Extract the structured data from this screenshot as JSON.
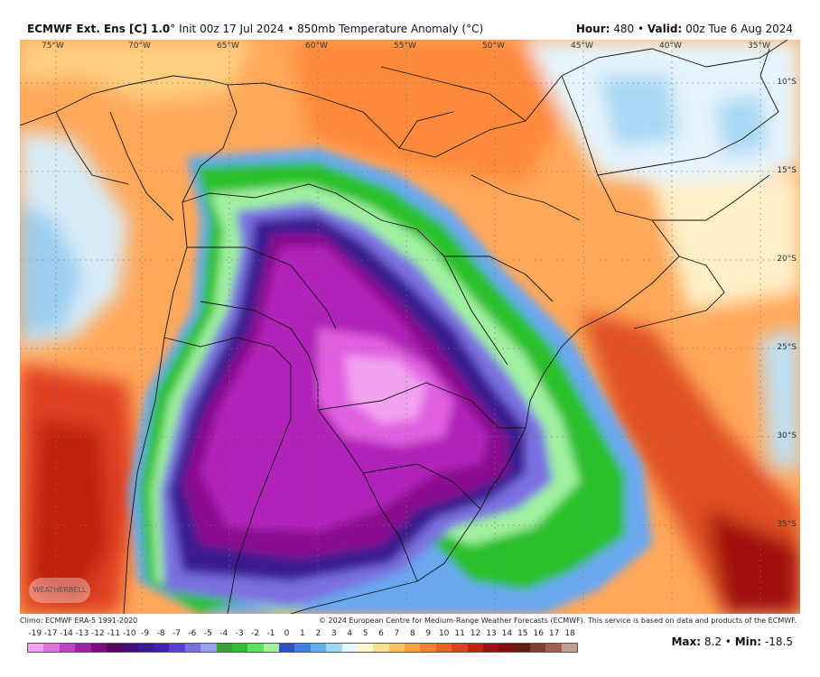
{
  "header": {
    "model": "ECMWF Ext. Ens [C] 1.0",
    "degree": "°",
    "init": "Init 00z 17 Jul 2024",
    "bullet": "•",
    "field": "850mb Temperature Anomaly (°C)",
    "hour_label": "Hour:",
    "hour_value": "480",
    "valid_label": "Valid:",
    "valid_value": "00z Tue 6 Aug 2024"
  },
  "map": {
    "longitudes": [
      "75°W",
      "70°W",
      "65°W",
      "60°W",
      "55°W",
      "50°W",
      "45°W",
      "40°W",
      "35°W"
    ],
    "latitudes": [
      "10°S",
      "15°S",
      "20°S",
      "25°S",
      "30°S",
      "35°S"
    ],
    "watermark_logo_text": "WEATHERBELL"
  },
  "footer": {
    "climo": "Climo: ECMWF ERA-5 1991-2020",
    "copyright": "© 2024 European Centre for Medium-Range Weather Forecasts (ECMWF). This service is based on data and products of the ECMWF."
  },
  "colorbar": {
    "labels": [
      "-19",
      "-17",
      "-14",
      "-13",
      "-12",
      "-11",
      "-10",
      "-9",
      "-8",
      "-7",
      "-6",
      "-5",
      "-4",
      "-3",
      "-2",
      "-1",
      "0",
      "1",
      "2",
      "3",
      "4",
      "5",
      "6",
      "7",
      "8",
      "9",
      "10",
      "11",
      "12",
      "13",
      "14",
      "15",
      "16",
      "17",
      "18"
    ],
    "colors": [
      "#f2a0f0",
      "#e070e0",
      "#c040c8",
      "#a020a8",
      "#800880",
      "#5a0060",
      "#40107a",
      "#3a1a90",
      "#4020b0",
      "#5a40d0",
      "#7a70e0",
      "#9aa0f0",
      "#3aa03a",
      "#30c030",
      "#60e060",
      "#a0f0a0",
      "#3050c0",
      "#4080e0",
      "#60b0f0",
      "#a0d8f8",
      "#e8f8ff",
      "#fff8d0",
      "#ffe090",
      "#ffc060",
      "#ffa040",
      "#ff8030",
      "#f06020",
      "#e04020",
      "#c82010",
      "#a01010",
      "#801010",
      "#602010",
      "#804030",
      "#a06050",
      "#c0a090"
    ]
  },
  "stats": {
    "max_label": "Max:",
    "max_value": "8.2",
    "separator": "•",
    "min_label": "Min:",
    "min_value": "-18.5"
  }
}
